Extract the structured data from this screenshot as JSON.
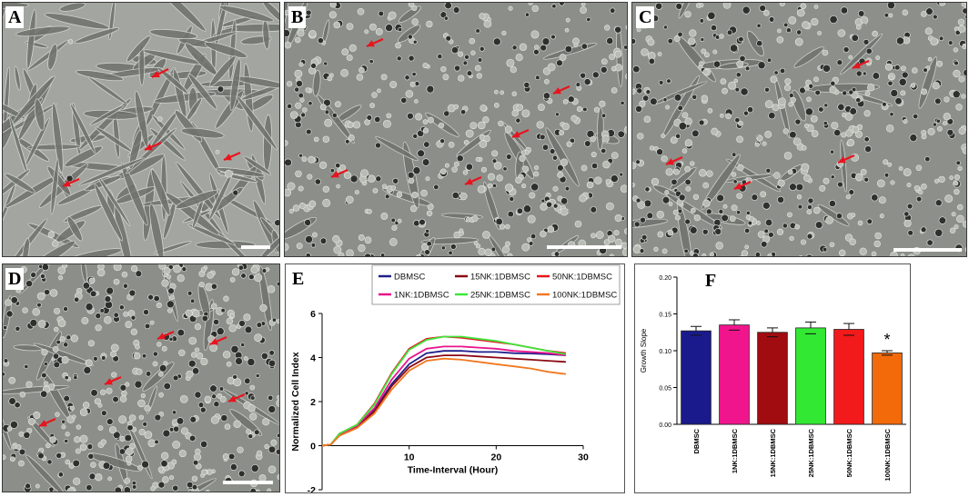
{
  "panels": {
    "a": "A",
    "b": "B",
    "c": "C",
    "d": "D",
    "e": "E",
    "f": "F"
  },
  "chart_data": [
    {
      "panel": "E",
      "type": "line",
      "xlabel": "Time-Interval (Hour)",
      "ylabel": "Normalized Cell Index",
      "xlim": [
        0,
        30
      ],
      "ylim": [
        -2,
        6
      ],
      "xticks": [
        10,
        20,
        30
      ],
      "yticks": [
        -2,
        0,
        2,
        4,
        6
      ],
      "legend_position": "top",
      "series": [
        {
          "name": "DBMSC",
          "color": "#1f1f8c",
          "x": [
            0,
            1,
            2,
            4,
            6,
            8,
            10,
            12,
            14,
            16,
            18,
            20,
            22,
            24,
            26,
            28
          ],
          "y": [
            0,
            0.05,
            0.5,
            0.85,
            1.6,
            2.8,
            3.7,
            4.2,
            4.3,
            4.3,
            4.25,
            4.25,
            4.2,
            4.18,
            4.15,
            4.1
          ]
        },
        {
          "name": "15NK:1DBMSC",
          "color": "#8b0a14",
          "x": [
            0,
            1,
            2,
            4,
            6,
            8,
            10,
            12,
            14,
            16,
            18,
            20,
            22,
            24,
            26,
            28
          ],
          "y": [
            0,
            0.05,
            0.5,
            0.85,
            1.55,
            2.7,
            3.55,
            4.0,
            4.1,
            4.1,
            4.05,
            4.0,
            3.95,
            3.9,
            3.85,
            3.8
          ]
        },
        {
          "name": "50NK:1DBMSC",
          "color": "#e8141e",
          "x": [
            0,
            1,
            2,
            4,
            6,
            8,
            10,
            12,
            14,
            16,
            18,
            20,
            22,
            24,
            26,
            28
          ],
          "y": [
            0,
            0.05,
            0.55,
            0.95,
            1.9,
            3.3,
            4.4,
            4.85,
            4.95,
            4.9,
            4.8,
            4.7,
            4.6,
            4.45,
            4.3,
            4.2
          ]
        },
        {
          "name": "1NK:1DBMSC",
          "color": "#e8148c",
          "x": [
            0,
            1,
            2,
            4,
            6,
            8,
            10,
            12,
            14,
            16,
            18,
            20,
            22,
            24,
            26,
            28
          ],
          "y": [
            0,
            0.05,
            0.5,
            0.9,
            1.7,
            3.0,
            3.95,
            4.4,
            4.5,
            4.5,
            4.45,
            4.4,
            4.3,
            4.25,
            4.2,
            4.1
          ]
        },
        {
          "name": "25NK:1DBMSC",
          "color": "#3ce83c",
          "x": [
            0,
            1,
            2,
            4,
            6,
            8,
            10,
            12,
            14,
            16,
            18,
            20,
            22,
            24,
            26,
            28
          ],
          "y": [
            0,
            0.05,
            0.55,
            0.95,
            1.85,
            3.25,
            4.35,
            4.8,
            4.95,
            4.95,
            4.85,
            4.75,
            4.6,
            4.45,
            4.3,
            4.15
          ]
        },
        {
          "name": "100NK:1DBMSC",
          "color": "#f07820",
          "x": [
            0,
            1,
            2,
            4,
            6,
            8,
            10,
            12,
            14,
            16,
            18,
            20,
            22,
            24,
            26,
            28
          ],
          "y": [
            0,
            0.05,
            0.45,
            0.8,
            1.45,
            2.55,
            3.4,
            3.85,
            3.95,
            3.9,
            3.8,
            3.7,
            3.6,
            3.5,
            3.35,
            3.25
          ]
        }
      ]
    },
    {
      "panel": "F",
      "type": "bar",
      "ylabel": "Growth Slope",
      "ylim": [
        0,
        0.2
      ],
      "yticks": [
        "0.00",
        "0.05",
        "0.10",
        "0.15",
        "0.20"
      ],
      "categories": [
        "DBMSC",
        "1NK:1DBMSC",
        "15NK:1DBMSC",
        "25NK:1DBMSC",
        "50NK:1DBMSC",
        "100NK:1DBMSC"
      ],
      "values": [
        0.127,
        0.135,
        0.125,
        0.131,
        0.129,
        0.097
      ],
      "errors": [
        0.006,
        0.007,
        0.006,
        0.008,
        0.008,
        0.003
      ],
      "colors": [
        "#1a1a8c",
        "#f0158c",
        "#a00c10",
        "#33e833",
        "#f21a1a",
        "#f26a0a"
      ],
      "annotations": [
        {
          "category": "100NK:1DBMSC",
          "text": "*"
        }
      ]
    }
  ]
}
